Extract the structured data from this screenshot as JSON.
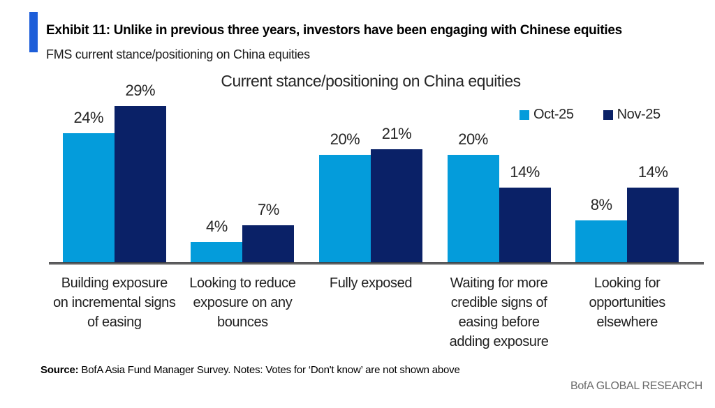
{
  "header": {
    "exhibit_title": "Exhibit 11: Unlike in previous three years, investors have been engaging with Chinese equities",
    "subtitle": "FMS current stance/positioning on China equities",
    "accent_color": "#1d5ed9"
  },
  "chart_data": {
    "type": "bar",
    "title": "Current stance/positioning on China equities",
    "categories": [
      "Building exposure on incremental signs of easing",
      "Looking to reduce exposure on any bounces",
      "Fully exposed",
      "Waiting for more credible signs of easing before adding exposure",
      "Looking for opportunities elsewhere"
    ],
    "series": [
      {
        "name": "Oct-25",
        "color": "#049cdb",
        "values": [
          24,
          4,
          20,
          20,
          8
        ]
      },
      {
        "name": "Nov-25",
        "color": "#0a2167",
        "values": [
          29,
          7,
          21,
          14,
          14
        ]
      }
    ],
    "value_suffix": "%",
    "xlabel": "",
    "ylabel": "",
    "ylim": [
      0,
      30
    ],
    "grid": false,
    "legend_position": "top-right",
    "axis_color": "#3f3f41"
  },
  "footer": {
    "source_label": "Source:",
    "source_text": " BofA Asia Fund Manager Survey. Notes: Votes for ‘Don't know’ are not shown above",
    "branding": "BofA GLOBAL RESEARCH"
  }
}
